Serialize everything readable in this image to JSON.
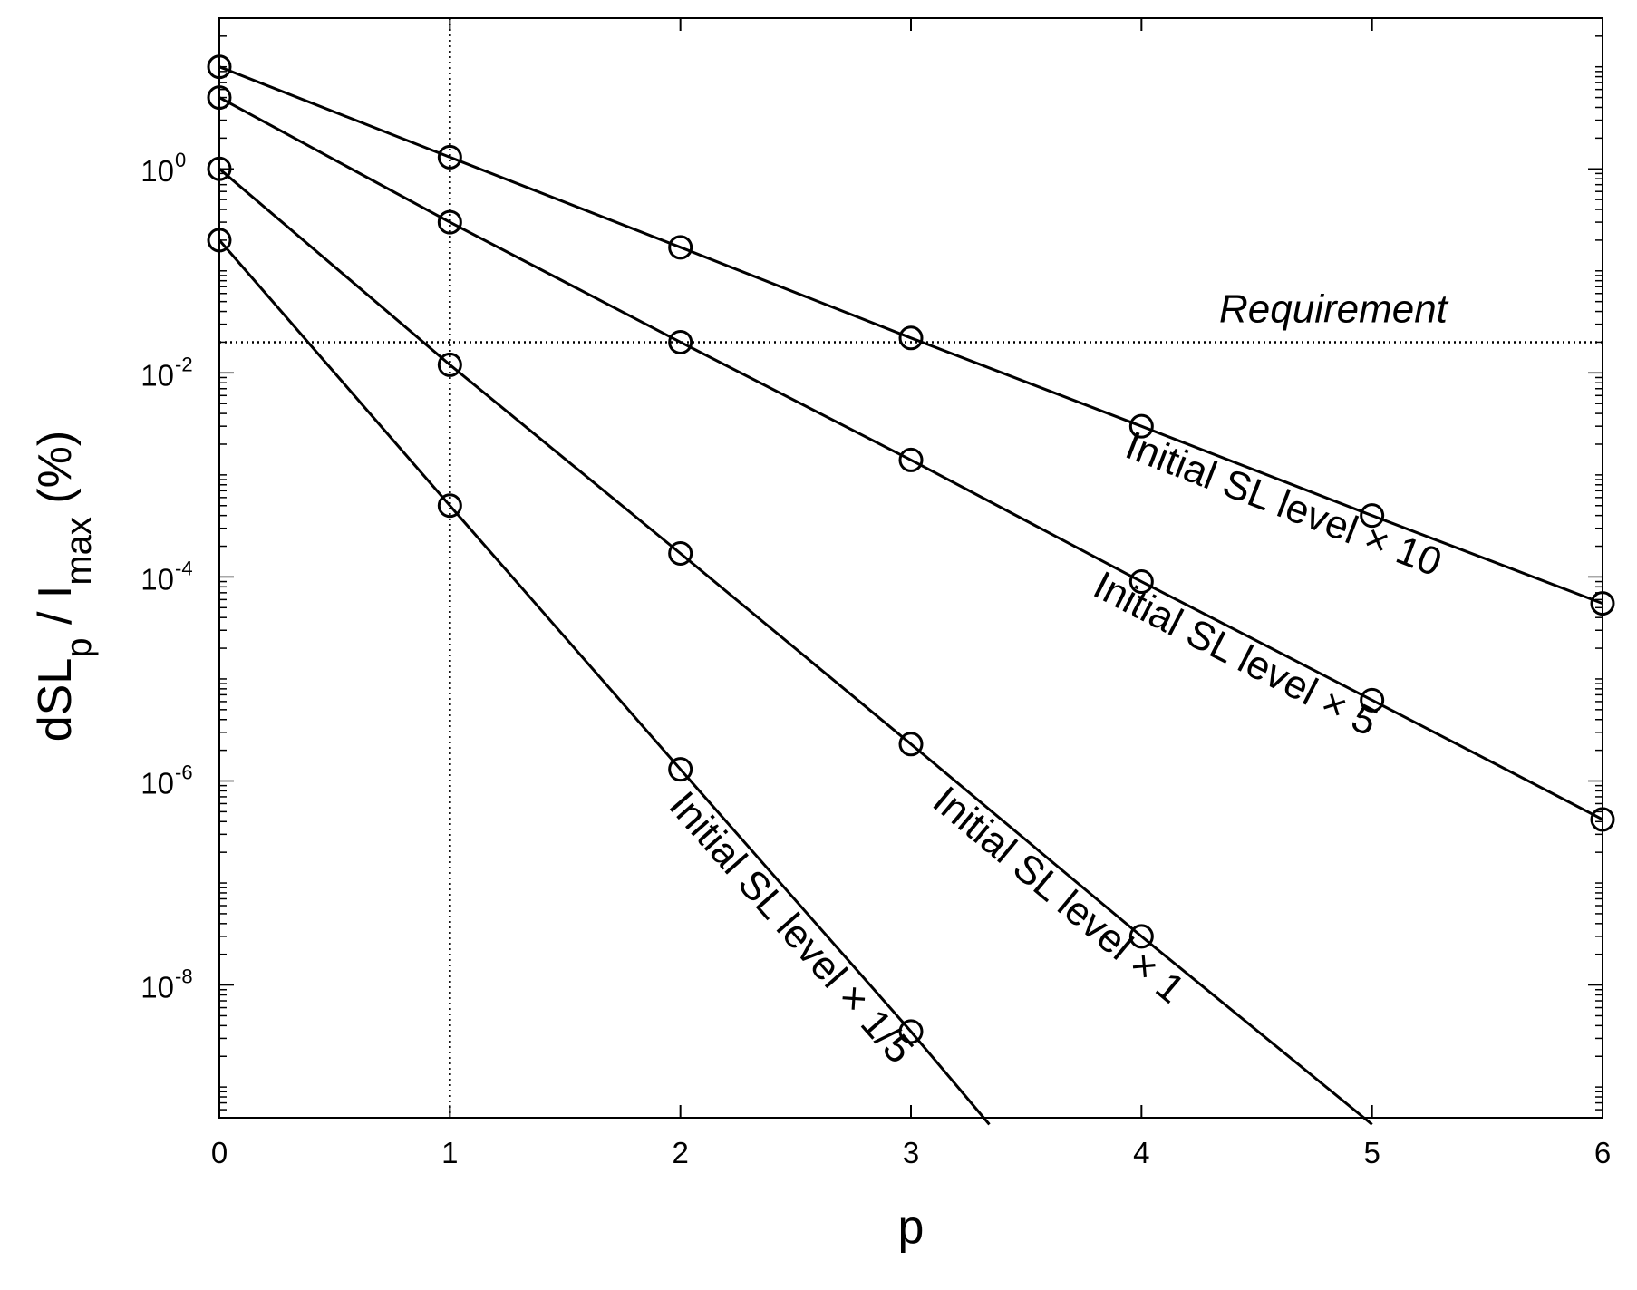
{
  "chart_data": {
    "type": "line",
    "xlabel": "p",
    "ylabel": {
      "base": "dSL",
      "base_sub": "p",
      "mid": " / I",
      "mid_sub": "max",
      "tail": " (%)"
    },
    "x_ticks": [
      0,
      1,
      2,
      3,
      4,
      5,
      6
    ],
    "xlim": [
      0,
      6
    ],
    "y_scale": "log",
    "ylim": [
      5e-10,
      30
    ],
    "y_ticks": [
      {
        "value": 1.0,
        "base": "10",
        "exp": "0"
      },
      {
        "value": 0.01,
        "base": "10",
        "exp": "-2"
      },
      {
        "value": 0.0001,
        "base": "10",
        "exp": "-4"
      },
      {
        "value": 1e-06,
        "base": "10",
        "exp": "-6"
      },
      {
        "value": 1e-08,
        "base": "10",
        "exp": "-8"
      }
    ],
    "marker": "open-circle",
    "line_color": "#000000",
    "reference_lines": [
      {
        "axis": "y",
        "value": 0.02,
        "label": "Requirement",
        "style": "dotted"
      },
      {
        "axis": "x",
        "value": 1,
        "style": "dotted"
      }
    ],
    "series": [
      {
        "name": "Initial SL level × 10",
        "x": [
          0,
          1,
          2,
          3,
          4,
          5,
          6
        ],
        "y": [
          10,
          1.3,
          0.17,
          0.022,
          0.003,
          0.0004,
          5.5e-05
        ]
      },
      {
        "name": "Initial SL level × 5",
        "x": [
          0,
          1,
          2,
          3,
          4,
          5,
          6
        ],
        "y": [
          5,
          0.3,
          0.02,
          0.0014,
          9e-05,
          6.2e-06,
          4.2e-07
        ]
      },
      {
        "name": "Initial SL level × 1",
        "x": [
          0,
          1,
          2,
          3,
          4,
          5
        ],
        "y": [
          1,
          0.012,
          0.00017,
          2.3e-06,
          3e-08,
          4.3e-10
        ],
        "markers_upto_index": 4
      },
      {
        "name": "Initial SL level × 1/5",
        "x": [
          0,
          1,
          2,
          3,
          3.34
        ],
        "y": [
          0.2,
          0.0005,
          1.3e-06,
          3.5e-09,
          4.3e-10
        ],
        "markers_upto_index": 3
      }
    ]
  }
}
